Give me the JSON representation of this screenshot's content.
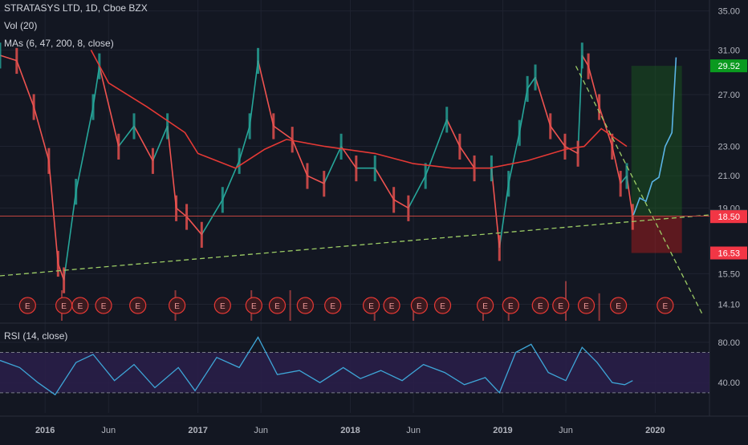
{
  "header": {
    "symbol_line": "STRATASYS LTD, 1D, Cboe BZX",
    "vol_line": "Vol (20)",
    "mas_line": "MAs (6, 47, 200, 8, close)",
    "rsi_line": "RSI (14, close)"
  },
  "colors": {
    "background": "#131722",
    "grid": "#1f2330",
    "candle_up": "#26a69a",
    "candle_down": "#ef5350",
    "ma_red": "#e53935",
    "ma_purple": "#9c27b0",
    "trendline": "#9ccc65",
    "support_line": "#c2453f",
    "rsi_line": "#3ea6d8",
    "rsi_band": "#2a1e4a",
    "target_zone": "#1b5e20",
    "stop_zone": "#b71c1c",
    "projection": "#5ab4e6",
    "earnings_marker": "#e53935",
    "axis_text": "#b2b5be"
  },
  "icons": {
    "earnings": "E"
  },
  "chart_data": [
    {
      "type": "line",
      "title": "STRATASYS LTD, 1D, Cboe BZX",
      "x_axis": {
        "tick_labels": [
          "2016",
          "Jun",
          "2017",
          "Jun",
          "2018",
          "Jun",
          "2019",
          "Jun",
          "2020"
        ],
        "tick_dates": [
          "2016-01-01",
          "2016-06-01",
          "2017-01-01",
          "2017-06-01",
          "2018-01-01",
          "2018-06-01",
          "2019-01-01",
          "2019-06-01",
          "2020-01-01"
        ],
        "range": [
          "2015-09-15",
          "2020-05-10"
        ]
      },
      "y_axis": {
        "scale": "log",
        "tick_labels": [
          "35.00",
          "31.00",
          "27.00",
          "23.00",
          "21.00",
          "19.00",
          "15.50",
          "14.10"
        ],
        "range": [
          13.4,
          36.2
        ]
      },
      "series": [
        {
          "kind": "close",
          "x": [
            "2015-09-15",
            "2015-10-25",
            "2015-12-05",
            "2016-01-10",
            "2016-02-01",
            "2016-02-15",
            "2016-03-15",
            "2016-04-25",
            "2016-05-10",
            "2016-06-25",
            "2016-08-01",
            "2016-09-15",
            "2016-10-20",
            "2016-11-10",
            "2016-12-05",
            "2017-01-10",
            "2017-03-01",
            "2017-04-10",
            "2017-05-05",
            "2017-05-25",
            "2017-07-01",
            "2017-08-15",
            "2017-09-20",
            "2017-10-30",
            "2017-12-10",
            "2018-01-15",
            "2018-03-01",
            "2018-04-15",
            "2018-05-20",
            "2018-06-30",
            "2018-08-20",
            "2018-09-20",
            "2018-10-25",
            "2018-12-05",
            "2018-12-24",
            "2019-01-15",
            "2019-02-10",
            "2019-03-01",
            "2019-03-20",
            "2019-04-25",
            "2019-05-30",
            "2019-06-30",
            "2019-07-10",
            "2019-07-25",
            "2019-08-20",
            "2019-09-20",
            "2019-10-10",
            "2019-10-25",
            "2019-11-08"
          ],
          "values": [
            30.5,
            30.0,
            26.0,
            22.0,
            16.0,
            15.2,
            20.0,
            26.0,
            29.5,
            23.0,
            24.5,
            22.0,
            24.5,
            19.0,
            18.5,
            17.5,
            19.5,
            22.0,
            24.5,
            30.0,
            24.5,
            23.5,
            21.0,
            20.5,
            23.0,
            21.5,
            21.5,
            19.5,
            19.0,
            21.0,
            25.0,
            23.0,
            21.5,
            21.5,
            16.8,
            20.5,
            24.0,
            27.5,
            28.5,
            24.5,
            23.0,
            22.5,
            30.5,
            29.5,
            26.0,
            23.0,
            20.5,
            21.0,
            18.5
          ]
        },
        {
          "kind": "moving_average_red",
          "x": [
            "2016-04-20",
            "2016-06-01",
            "2016-09-01",
            "2016-12-01",
            "2017-01-01",
            "2017-04-01",
            "2017-06-10",
            "2017-08-01",
            "2017-11-01",
            "2018-03-01",
            "2018-06-01",
            "2018-09-01",
            "2018-12-01",
            "2019-03-01",
            "2019-06-01",
            "2019-07-15",
            "2019-08-25",
            "2019-10-25"
          ],
          "values": [
            31.0,
            28.0,
            26.0,
            24.0,
            22.5,
            21.5,
            22.8,
            23.5,
            23.0,
            22.5,
            21.8,
            21.5,
            21.5,
            22.0,
            22.8,
            23.0,
            24.3,
            23.0
          ]
        },
        {
          "kind": "trendline_rising",
          "x": [
            "2015-09-15",
            "2020-05-10"
          ],
          "values": [
            15.4,
            18.6
          ]
        },
        {
          "kind": "trendline_falling",
          "x": [
            "2019-06-25",
            "2020-04-25"
          ],
          "values": [
            29.5,
            13.6
          ]
        },
        {
          "kind": "projection",
          "x": [
            "2019-11-10",
            "2019-11-25",
            "2019-12-10",
            "2019-12-25",
            "2020-01-10",
            "2020-01-25",
            "2020-02-10",
            "2020-02-20"
          ],
          "values": [
            18.6,
            19.6,
            19.4,
            20.6,
            20.9,
            23.0,
            24.0,
            30.3
          ]
        }
      ],
      "volume": {
        "x": [
          "2016-02-10",
          "2016-11-08",
          "2017-05-09",
          "2017-08-10",
          "2018-02-28",
          "2018-06-01",
          "2018-11-15",
          "2019-01-15",
          "2019-06-01",
          "2019-08-20"
        ],
        "values": [
          1.0,
          1.0,
          1.0,
          1.0,
          0.6,
          0.6,
          0.6,
          0.6,
          1.3,
          0.9
        ]
      },
      "earnings_dates": [
        "2015-11-20",
        "2016-02-15",
        "2016-03-25",
        "2016-05-20",
        "2016-08-10",
        "2016-11-12",
        "2017-03-01",
        "2017-05-15",
        "2017-07-10",
        "2017-09-15",
        "2017-11-20",
        "2018-02-20",
        "2018-04-10",
        "2018-06-15",
        "2018-08-10",
        "2018-11-20",
        "2019-01-20",
        "2019-04-01",
        "2019-05-20",
        "2019-07-20",
        "2019-10-05",
        "2020-01-25"
      ],
      "horizontal_levels": [
        {
          "label": "18.53",
          "value": 18.53,
          "color": "#434651"
        },
        {
          "label": "18.50",
          "value": 18.5,
          "color": "#f23645"
        },
        {
          "label": "29.52",
          "value": 29.52,
          "color": "#0a9a1f"
        },
        {
          "label": "16.53",
          "value": 16.53,
          "color": "#f23645"
        }
      ],
      "zones": [
        {
          "kind": "target",
          "x": [
            "2019-11-05",
            "2020-03-05"
          ],
          "y": [
            18.5,
            29.52
          ]
        },
        {
          "kind": "stop",
          "x": [
            "2019-11-05",
            "2020-03-05"
          ],
          "y": [
            16.53,
            18.5
          ]
        }
      ]
    },
    {
      "type": "line",
      "title": "RSI (14, close)",
      "y_axis": {
        "tick_labels": [
          "80.00",
          "40.00"
        ],
        "range": [
          10,
          95
        ],
        "band": [
          30,
          70
        ]
      },
      "series": [
        {
          "name": "RSI",
          "x": [
            "2015-09-15",
            "2015-11-01",
            "2015-12-15",
            "2016-01-25",
            "2016-03-15",
            "2016-04-25",
            "2016-06-15",
            "2016-08-01",
            "2016-09-20",
            "2016-11-15",
            "2016-12-25",
            "2017-02-15",
            "2017-04-10",
            "2017-05-25",
            "2017-07-10",
            "2017-09-01",
            "2017-10-20",
            "2017-12-15",
            "2018-01-25",
            "2018-03-15",
            "2018-05-05",
            "2018-06-25",
            "2018-08-15",
            "2018-10-01",
            "2018-11-20",
            "2018-12-24",
            "2019-02-01",
            "2019-03-10",
            "2019-04-20",
            "2019-06-01",
            "2019-07-10",
            "2019-08-15",
            "2019-09-20",
            "2019-10-20",
            "2019-11-08"
          ],
          "values": [
            62,
            55,
            40,
            28,
            60,
            68,
            42,
            58,
            35,
            55,
            32,
            65,
            55,
            85,
            48,
            52,
            40,
            55,
            44,
            52,
            42,
            58,
            50,
            38,
            45,
            30,
            70,
            78,
            50,
            42,
            75,
            60,
            40,
            38,
            42
          ]
        }
      ]
    }
  ]
}
